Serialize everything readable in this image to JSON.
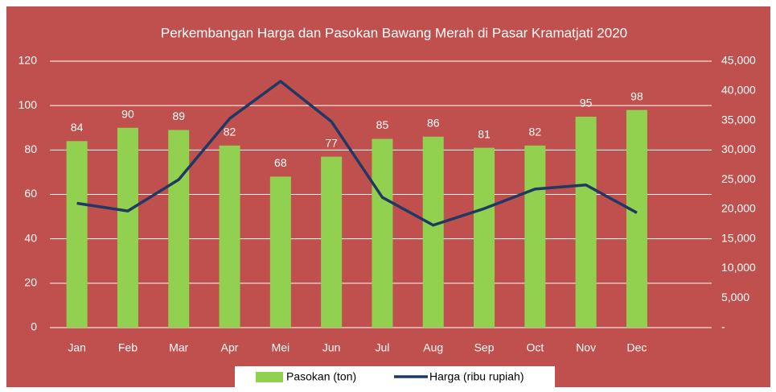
{
  "chart_data": {
    "type": "bar-line",
    "title": "Perkembangan Harga dan Pasokan Bawang Merah di Pasar Kramatjati 2020",
    "categories": [
      "Jan",
      "Feb",
      "Mar",
      "Apr",
      "Mei",
      "Jun",
      "Jul",
      "Aug",
      "Sep",
      "Oct",
      "Nov",
      "Dec"
    ],
    "series": [
      {
        "name": "Pasokan (ton)",
        "color": "#92d050",
        "type": "bar",
        "values": [
          84,
          90,
          89,
          82,
          68,
          77,
          85,
          86,
          81,
          82,
          95,
          98
        ]
      },
      {
        "name": "Harga (ribu rupiah)",
        "color": "#1f3864",
        "type": "line",
        "axis": "y2",
        "values": [
          21000,
          19700,
          25000,
          35300,
          41600,
          34800,
          22000,
          17300,
          20100,
          23400,
          24100,
          19400
        ]
      }
    ],
    "ylim": [
      0,
      120
    ],
    "yticks": [
      0,
      20,
      40,
      60,
      80,
      100,
      120
    ],
    "y2lim": [
      0,
      45000
    ],
    "y2ticks": [
      {
        "value": 0,
        "label": "-"
      },
      {
        "value": 5000,
        "label": "5,000"
      },
      {
        "value": 10000,
        "label": "10,000"
      },
      {
        "value": 15000,
        "label": "15,000"
      },
      {
        "value": 20000,
        "label": "20,000"
      },
      {
        "value": 25000,
        "label": "25,000"
      },
      {
        "value": 30000,
        "label": "30,000"
      },
      {
        "value": 35000,
        "label": "35,000"
      },
      {
        "value": 40000,
        "label": "40,000"
      },
      {
        "value": 45000,
        "label": "45,000"
      }
    ],
    "grid": true,
    "legend": "bottom",
    "background": "#c0504d"
  }
}
